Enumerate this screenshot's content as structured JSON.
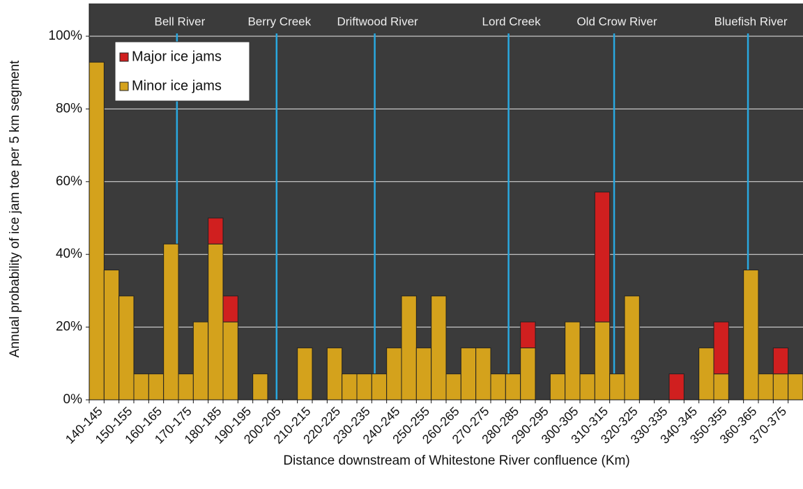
{
  "chart_data": {
    "type": "stacked_bar",
    "x_label": "Distance downstream of Whitestone River confluence (Km)",
    "y_label": "Annual probability of ice jam toe per 5 km segment",
    "categories": [
      "140-145",
      null,
      "150-155",
      null,
      "160-165",
      null,
      "170-175",
      null,
      "180-185",
      null,
      "190-195",
      null,
      "200-205",
      null,
      "210-215",
      null,
      "220-225",
      null,
      "230-235",
      null,
      "240-245",
      null,
      "250-255",
      null,
      "260-265",
      null,
      "270-275",
      null,
      "280-285",
      null,
      "290-295",
      null,
      "300-305",
      null,
      "310-315",
      null,
      "320-325",
      null,
      "330-335",
      null,
      "340-345",
      null,
      "350-355",
      null,
      "360-365",
      null,
      "370-375",
      null
    ],
    "series": [
      {
        "name": "Minor ice jams",
        "color": "#d4a21c",
        "values": [
          92.86,
          35.71,
          28.57,
          7.14,
          7.14,
          42.86,
          7.14,
          21.43,
          42.86,
          21.43,
          0,
          7.14,
          0,
          0,
          14.29,
          0,
          14.29,
          7.14,
          7.14,
          7.14,
          14.29,
          28.57,
          14.29,
          28.57,
          7.14,
          14.29,
          14.29,
          7.14,
          7.14,
          14.29,
          0,
          7.14,
          21.43,
          7.14,
          21.43,
          7.14,
          28.57,
          0,
          0,
          0,
          0,
          14.29,
          7.14,
          0,
          35.71,
          7.14,
          7.14,
          7.14
        ]
      },
      {
        "name": "Major ice jams",
        "color": "#d01f1f",
        "values": [
          0,
          0,
          0,
          0,
          0,
          0,
          0,
          0,
          7.14,
          7.14,
          0,
          0,
          0,
          0,
          0,
          0,
          0,
          0,
          0,
          0,
          0,
          0,
          0,
          0,
          0,
          0,
          0,
          0,
          0,
          7.14,
          0,
          0,
          0,
          0,
          35.71,
          0,
          0,
          0,
          0,
          7.14,
          0,
          0,
          14.29,
          0,
          0,
          0,
          7.14,
          0
        ]
      }
    ],
    "ylim": [
      0,
      109
    ],
    "yticks": [
      {
        "value": 0,
        "label": "0%"
      },
      {
        "value": 20,
        "label": "20%"
      },
      {
        "value": 40,
        "label": "40%"
      },
      {
        "value": 60,
        "label": "60%"
      },
      {
        "value": 80,
        "label": "80%"
      },
      {
        "value": 100,
        "label": "100%"
      }
    ],
    "grid": true,
    "background": "#3b3b3b",
    "legend": "upper left",
    "tributaries": [
      {
        "name": "Bell River",
        "x": 169.5
      },
      {
        "name": "Berry Creek",
        "x": 203
      },
      {
        "name": "Driftwood River",
        "x": 236
      },
      {
        "name": "Lord Creek",
        "x": 281
      },
      {
        "name": "Old Crow River",
        "x": 316.5
      },
      {
        "name": "Bluefish River",
        "x": 361.5
      }
    ],
    "tributary_color": "#29a8e0"
  }
}
